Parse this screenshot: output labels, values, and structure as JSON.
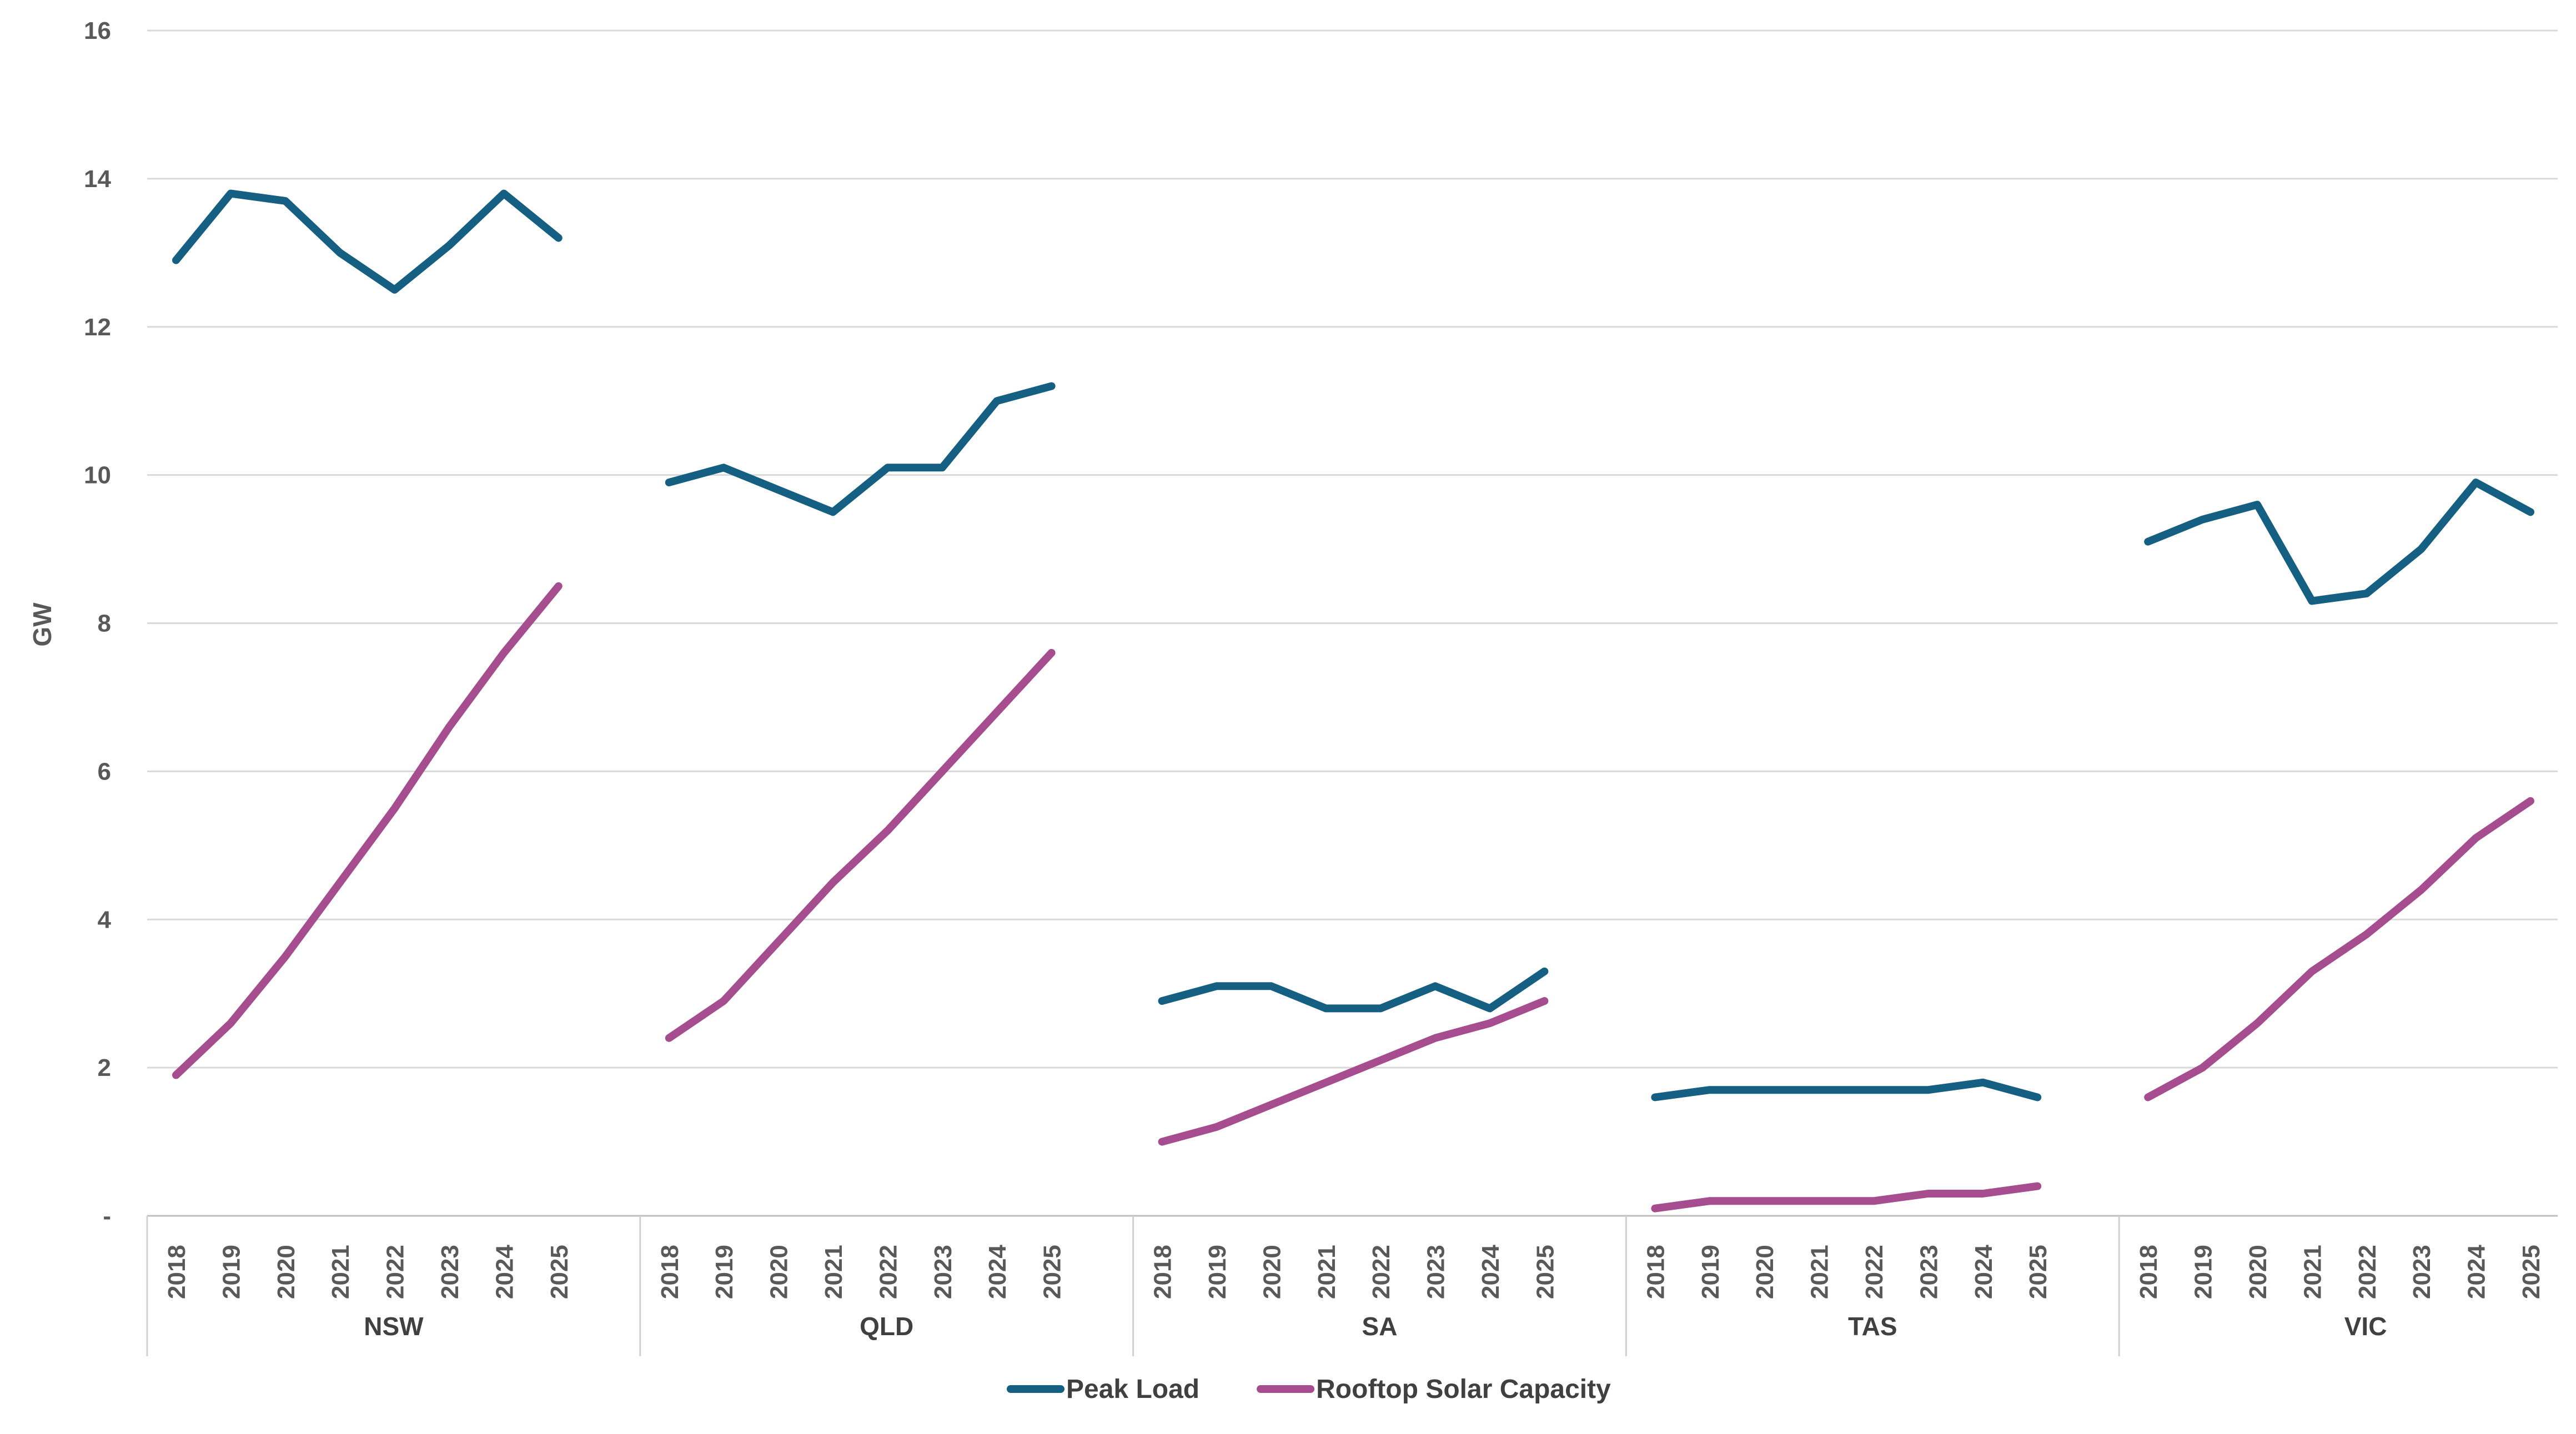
{
  "chart_data": {
    "type": "line",
    "ylabel": "GW",
    "ylim": [
      0,
      16
    ],
    "yticks": [
      {
        "value": 0,
        "label": "-"
      },
      {
        "value": 2,
        "label": "2"
      },
      {
        "value": 4,
        "label": "4"
      },
      {
        "value": 6,
        "label": "6"
      },
      {
        "value": 8,
        "label": "8"
      },
      {
        "value": 10,
        "label": "10"
      },
      {
        "value": 12,
        "label": "12"
      },
      {
        "value": 14,
        "label": "14"
      },
      {
        "value": 16,
        "label": "16"
      }
    ],
    "grid": "horizontal",
    "legend_position": "bottom",
    "years": [
      "2018",
      "2019",
      "2020",
      "2021",
      "2022",
      "2023",
      "2024",
      "2025"
    ],
    "groups": [
      "NSW",
      "QLD",
      "SA",
      "TAS",
      "VIC"
    ],
    "series": [
      {
        "name": "Peak Load",
        "color": "#156082",
        "values": {
          "NSW": [
            12.9,
            13.8,
            13.7,
            13.0,
            12.5,
            13.1,
            13.8,
            13.2
          ],
          "QLD": [
            9.9,
            10.1,
            9.8,
            9.5,
            10.1,
            10.1,
            11.0,
            11.2
          ],
          "SA": [
            2.9,
            3.1,
            3.1,
            2.8,
            2.8,
            3.1,
            2.8,
            3.3
          ],
          "TAS": [
            1.6,
            1.7,
            1.7,
            1.7,
            1.7,
            1.7,
            1.8,
            1.6
          ],
          "VIC": [
            9.1,
            9.4,
            9.6,
            8.3,
            8.4,
            9.0,
            9.9,
            9.5
          ]
        }
      },
      {
        "name": "Rooftop Solar Capacity",
        "color": "#A64D8F",
        "values": {
          "NSW": [
            1.9,
            2.6,
            3.5,
            4.5,
            5.5,
            6.6,
            7.6,
            8.5
          ],
          "QLD": [
            2.4,
            2.9,
            3.7,
            4.5,
            5.2,
            6.0,
            6.8,
            7.6
          ],
          "SA": [
            1.0,
            1.2,
            1.5,
            1.8,
            2.1,
            2.4,
            2.6,
            2.9
          ],
          "TAS": [
            0.1,
            0.2,
            0.2,
            0.2,
            0.2,
            0.3,
            0.3,
            0.4
          ],
          "VIC": [
            1.6,
            2.0,
            2.6,
            3.3,
            3.8,
            4.4,
            5.1,
            5.6
          ]
        }
      }
    ]
  }
}
